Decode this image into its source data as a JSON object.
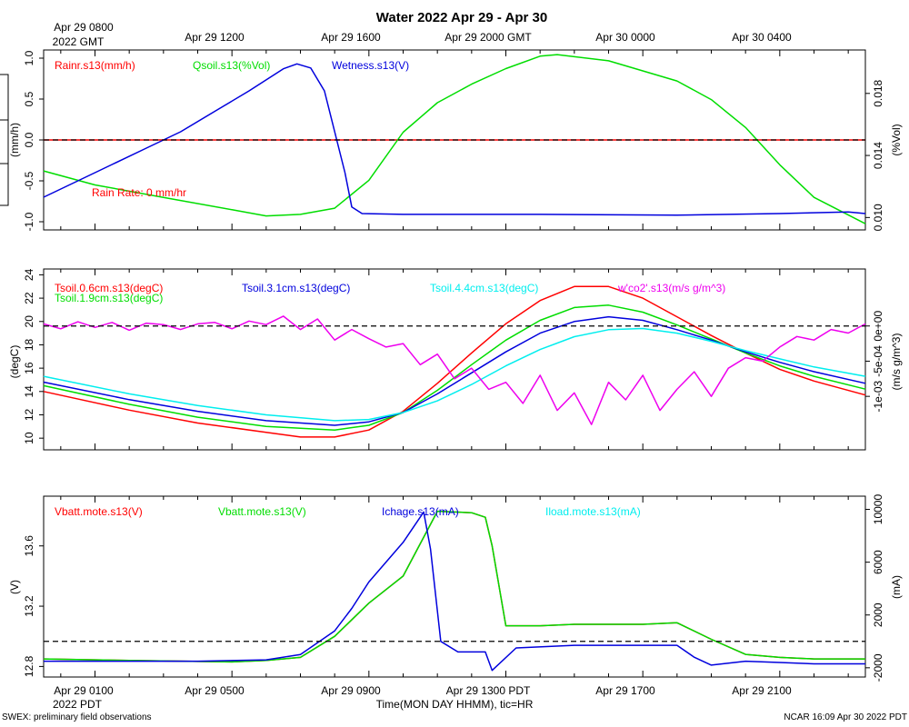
{
  "figure": {
    "title": "Water 2022 Apr 29 - Apr 30",
    "top_axis_labels": [
      "Apr 29 0800",
      "Apr 29 1200",
      "Apr 29 1600",
      "Apr 29 2000 GMT",
      "Apr 30 0000",
      "Apr 30 0400"
    ],
    "top_axis_sublabel": "2022 GMT",
    "bottom_axis_labels": [
      "Apr 29 0100",
      "Apr 29 0500",
      "Apr 29 0900",
      "Apr 29 1300 PDT",
      "Apr 29 1700",
      "Apr 29 2100"
    ],
    "bottom_axis_sublabel": "2022 PDT",
    "xlabel": "Time(MON DAY HHMM), tic=HR",
    "footer_left": "SWEX: preliminary field observations",
    "footer_right": "NCAR 16:09 Apr 30 2022 PDT",
    "x_range_hours_pdt": [
      -0.5,
      23.5
    ],
    "label_hours_pdt": [
      1,
      5,
      9,
      13,
      17,
      21
    ],
    "colors": {
      "red": "#ff0000",
      "green": "#00dd00",
      "blue": "#0000dd",
      "cyan": "#00eeee",
      "magenta": "#ee00ee",
      "black": "#000000"
    }
  },
  "chart_data": [
    {
      "type": "line",
      "panel": "top",
      "ylabel_left": "(mm/h)",
      "ylabel_right": "(%Vol)",
      "ylim_left": [
        -1.1,
        1.1
      ],
      "yticks_left": [
        "1.0",
        "0.5",
        "0.0",
        "-0.5",
        "-1.0"
      ],
      "ytick_values_left": [
        1.0,
        0.5,
        0.0,
        -0.5,
        -1.0
      ],
      "ylim_right": [
        0.0092,
        0.0208
      ],
      "yticks_right": [
        "0.018",
        "0.014",
        "0.010"
      ],
      "ytick_values_right": [
        0.018,
        0.014,
        0.01
      ],
      "refline": 0.0,
      "annotation": "Rain Rate: 0 mm/hr",
      "series": [
        {
          "name": "Rainr.s13(mm/h)",
          "color": "#ff0000",
          "axis": "left",
          "x": [
            -0.5,
            23.5
          ],
          "values": [
            0,
            0
          ]
        },
        {
          "name": "Qsoil.s13(%Vol)",
          "color": "#00dd00",
          "axis": "right",
          "x": [
            -0.5,
            1,
            3,
            5,
            6,
            7,
            8,
            9,
            10,
            11,
            12,
            13,
            14,
            14.5,
            16,
            18,
            19,
            20,
            21,
            22,
            23.5
          ],
          "values": [
            0.013,
            0.0121,
            0.0113,
            0.0105,
            0.0101,
            0.0102,
            0.0106,
            0.0124,
            0.0155,
            0.0174,
            0.0186,
            0.0196,
            0.0204,
            0.0205,
            0.0201,
            0.0188,
            0.0176,
            0.0158,
            0.0134,
            0.0113,
            0.0096
          ]
        },
        {
          "name": "Wetness.s13(V)",
          "color": "#0000dd",
          "axis": "left",
          "x": [
            -0.5,
            0.5,
            1.5,
            2.5,
            3.5,
            4.5,
            5.5,
            6.5,
            6.9,
            7.3,
            7.7,
            8.0,
            8.3,
            8.5,
            8.8,
            10,
            14,
            18,
            21,
            23,
            23.5
          ],
          "values": [
            -0.7,
            -0.5,
            -0.3,
            -0.1,
            0.1,
            0.35,
            0.6,
            0.87,
            0.93,
            0.88,
            0.6,
            0.1,
            -0.4,
            -0.82,
            -0.9,
            -0.91,
            -0.91,
            -0.92,
            -0.9,
            -0.88,
            -0.9
          ]
        }
      ]
    },
    {
      "type": "line",
      "panel": "middle",
      "ylabel_left": "(degC)",
      "ylabel_right": "(m/s g/m^3)",
      "ylim_left": [
        9.0,
        24.5
      ],
      "yticks_left": [
        "24",
        "22",
        "20",
        "18",
        "16",
        "14",
        "12",
        "10"
      ],
      "ytick_values_left": [
        24,
        22,
        20,
        18,
        16,
        14,
        12,
        10
      ],
      "ylim_right": [
        -0.00176,
        0.00081
      ],
      "yticks_right": [
        "0e+00",
        "-5e-04",
        "-1e-03"
      ],
      "ytick_values_right": [
        0.0,
        -0.0005,
        -0.001
      ],
      "refline_right": 0.0,
      "series": [
        {
          "name": "Tsoil.0.6cm.s13(degC)",
          "color": "#ff0000",
          "axis": "left",
          "x": [
            -0.5,
            2,
            4,
            6,
            7,
            8,
            9,
            10,
            11,
            12,
            13,
            14,
            15,
            16,
            17,
            18,
            19,
            20,
            21,
            22,
            23.5
          ],
          "values": [
            14.0,
            12.4,
            11.3,
            10.5,
            10.1,
            10.1,
            10.7,
            12.3,
            14.7,
            17.3,
            19.8,
            21.8,
            23.0,
            23.0,
            22.0,
            20.4,
            18.8,
            17.3,
            15.9,
            14.9,
            13.7
          ]
        },
        {
          "name": "Tsoil.1.9cm.s13(degC)",
          "color": "#00dd00",
          "axis": "left",
          "x": [
            -0.5,
            2,
            4,
            6,
            8,
            9,
            10,
            11,
            12,
            13,
            14,
            15,
            16,
            17,
            18,
            19,
            20,
            21,
            22,
            23.5
          ],
          "values": [
            14.5,
            12.9,
            11.8,
            11.0,
            10.7,
            11.1,
            12.2,
            14.1,
            16.3,
            18.4,
            20.1,
            21.2,
            21.4,
            20.8,
            19.7,
            18.5,
            17.3,
            16.2,
            15.3,
            14.2
          ]
        },
        {
          "name": "Tsoil.3.1cm.s13(degC)",
          "color": "#0000dd",
          "axis": "left",
          "x": [
            -0.5,
            2,
            4,
            6,
            8,
            9,
            10,
            11,
            12,
            13,
            14,
            15,
            16,
            17,
            18,
            19,
            20,
            21,
            22,
            23.5
          ],
          "values": [
            14.8,
            13.3,
            12.3,
            11.5,
            11.1,
            11.4,
            12.2,
            13.8,
            15.6,
            17.4,
            19.0,
            20.0,
            20.4,
            20.1,
            19.3,
            18.4,
            17.4,
            16.5,
            15.7,
            14.7
          ]
        },
        {
          "name": "Tsoil.4.4cm.s13(degC)",
          "color": "#00eeee",
          "axis": "left",
          "x": [
            -0.5,
            2,
            4,
            6,
            8,
            9,
            10,
            11,
            12,
            13,
            14,
            15,
            16,
            17,
            18,
            19,
            20,
            21,
            22,
            23.5
          ],
          "values": [
            15.3,
            13.8,
            12.8,
            12.0,
            11.5,
            11.6,
            12.2,
            13.2,
            14.6,
            16.2,
            17.6,
            18.7,
            19.3,
            19.4,
            19.0,
            18.3,
            17.5,
            16.8,
            16.1,
            15.3
          ]
        },
        {
          "name": "w'co2'.s13(m/s g/m^3)",
          "color": "#ee00ee",
          "axis": "right",
          "x": [
            -0.5,
            0,
            0.5,
            1,
            1.5,
            2,
            2.5,
            3,
            3.5,
            4,
            4.5,
            5,
            5.5,
            6,
            6.5,
            7,
            7.5,
            8,
            8.5,
            9,
            9.5,
            10,
            10.5,
            11,
            11.5,
            12,
            12.5,
            13,
            13.5,
            14,
            14.5,
            15,
            15.5,
            16,
            16.5,
            17,
            17.5,
            18,
            18.5,
            19,
            19.5,
            20,
            20.5,
            21,
            21.5,
            22,
            22.5,
            23,
            23.5
          ],
          "values": [
            3e-05,
            -4e-05,
            6e-05,
            -2e-05,
            5e-05,
            -6e-05,
            4e-05,
            2e-05,
            -5e-05,
            3e-05,
            5e-05,
            -4e-05,
            7e-05,
            2e-05,
            0.00014,
            -5e-05,
            0.0001,
            -0.0002,
            -5e-05,
            -0.00018,
            -0.0003,
            -0.00025,
            -0.00055,
            -0.0004,
            -0.00075,
            -0.0006,
            -0.0009,
            -0.0008,
            -0.0011,
            -0.0007,
            -0.0012,
            -0.00095,
            -0.0014,
            -0.0008,
            -0.00105,
            -0.0007,
            -0.0012,
            -0.0009,
            -0.00065,
            -0.001,
            -0.0006,
            -0.00045,
            -0.0005,
            -0.0003,
            -0.00015,
            -0.0002,
            -5e-05,
            -0.0001,
            3e-05
          ]
        }
      ]
    },
    {
      "type": "line",
      "panel": "bottom",
      "ylabel_left": "(V)",
      "ylabel_right": "(mA)",
      "ylim_left": [
        12.73,
        13.93
      ],
      "yticks_left": [
        "13.6",
        "13.2",
        "12.8"
      ],
      "ytick_values_left": [
        13.6,
        13.2,
        12.8
      ],
      "ylim_right": [
        -2700,
        11000
      ],
      "yticks_right": [
        "10000",
        "6000",
        "2000",
        "-2000"
      ],
      "ytick_values_right": [
        10000,
        6000,
        2000,
        -2000
      ],
      "refline_right": 0,
      "series": [
        {
          "name": "Vbatt.mote.s13(V)",
          "color": "#ff0000",
          "axis": "left",
          "x": [
            -0.5,
            2,
            5,
            6,
            7,
            8,
            9,
            10,
            11,
            12,
            12.4,
            12.6,
            13,
            14,
            15,
            17,
            18,
            19,
            20,
            21,
            22,
            23.5
          ],
          "values": [
            12.85,
            12.84,
            12.83,
            12.84,
            12.86,
            13.0,
            13.22,
            13.4,
            13.83,
            13.82,
            13.79,
            13.6,
            13.07,
            13.07,
            13.08,
            13.08,
            13.09,
            12.98,
            12.88,
            12.86,
            12.85,
            12.85
          ]
        },
        {
          "name": "Vbatt.mote.s13(V)",
          "color": "#00dd00",
          "axis": "left",
          "x": [
            -0.5,
            2,
            5,
            6,
            7,
            8,
            9,
            10,
            11,
            12,
            12.4,
            12.6,
            13,
            14,
            15,
            17,
            18,
            19,
            20,
            21,
            22,
            23.5
          ],
          "values": [
            12.85,
            12.84,
            12.83,
            12.84,
            12.86,
            13.0,
            13.22,
            13.4,
            13.83,
            13.82,
            13.79,
            13.6,
            13.07,
            13.07,
            13.08,
            13.08,
            13.09,
            12.98,
            12.88,
            12.86,
            12.85,
            12.85
          ]
        },
        {
          "name": "Ichage.s13(mA)",
          "color": "#0000dd",
          "axis": "right",
          "x": [
            -0.5,
            4,
            6,
            7,
            8,
            8.5,
            9,
            10,
            10.6,
            10.8,
            11.1,
            11.6,
            12.4,
            12.6,
            13.3,
            15,
            18,
            18.5,
            19,
            20,
            21,
            22,
            23.5
          ],
          "values": [
            -1500,
            -1500,
            -1400,
            -1000,
            800,
            2500,
            4500,
            7500,
            9800,
            7000,
            0,
            -800,
            -800,
            -2200,
            -500,
            -300,
            -300,
            -1200,
            -1800,
            -1500,
            -1600,
            -1700,
            -1700
          ]
        },
        {
          "name": "Iload.mote.s13(mA)",
          "color": "#00eeee",
          "axis": "right",
          "x": [],
          "values": []
        }
      ]
    }
  ]
}
